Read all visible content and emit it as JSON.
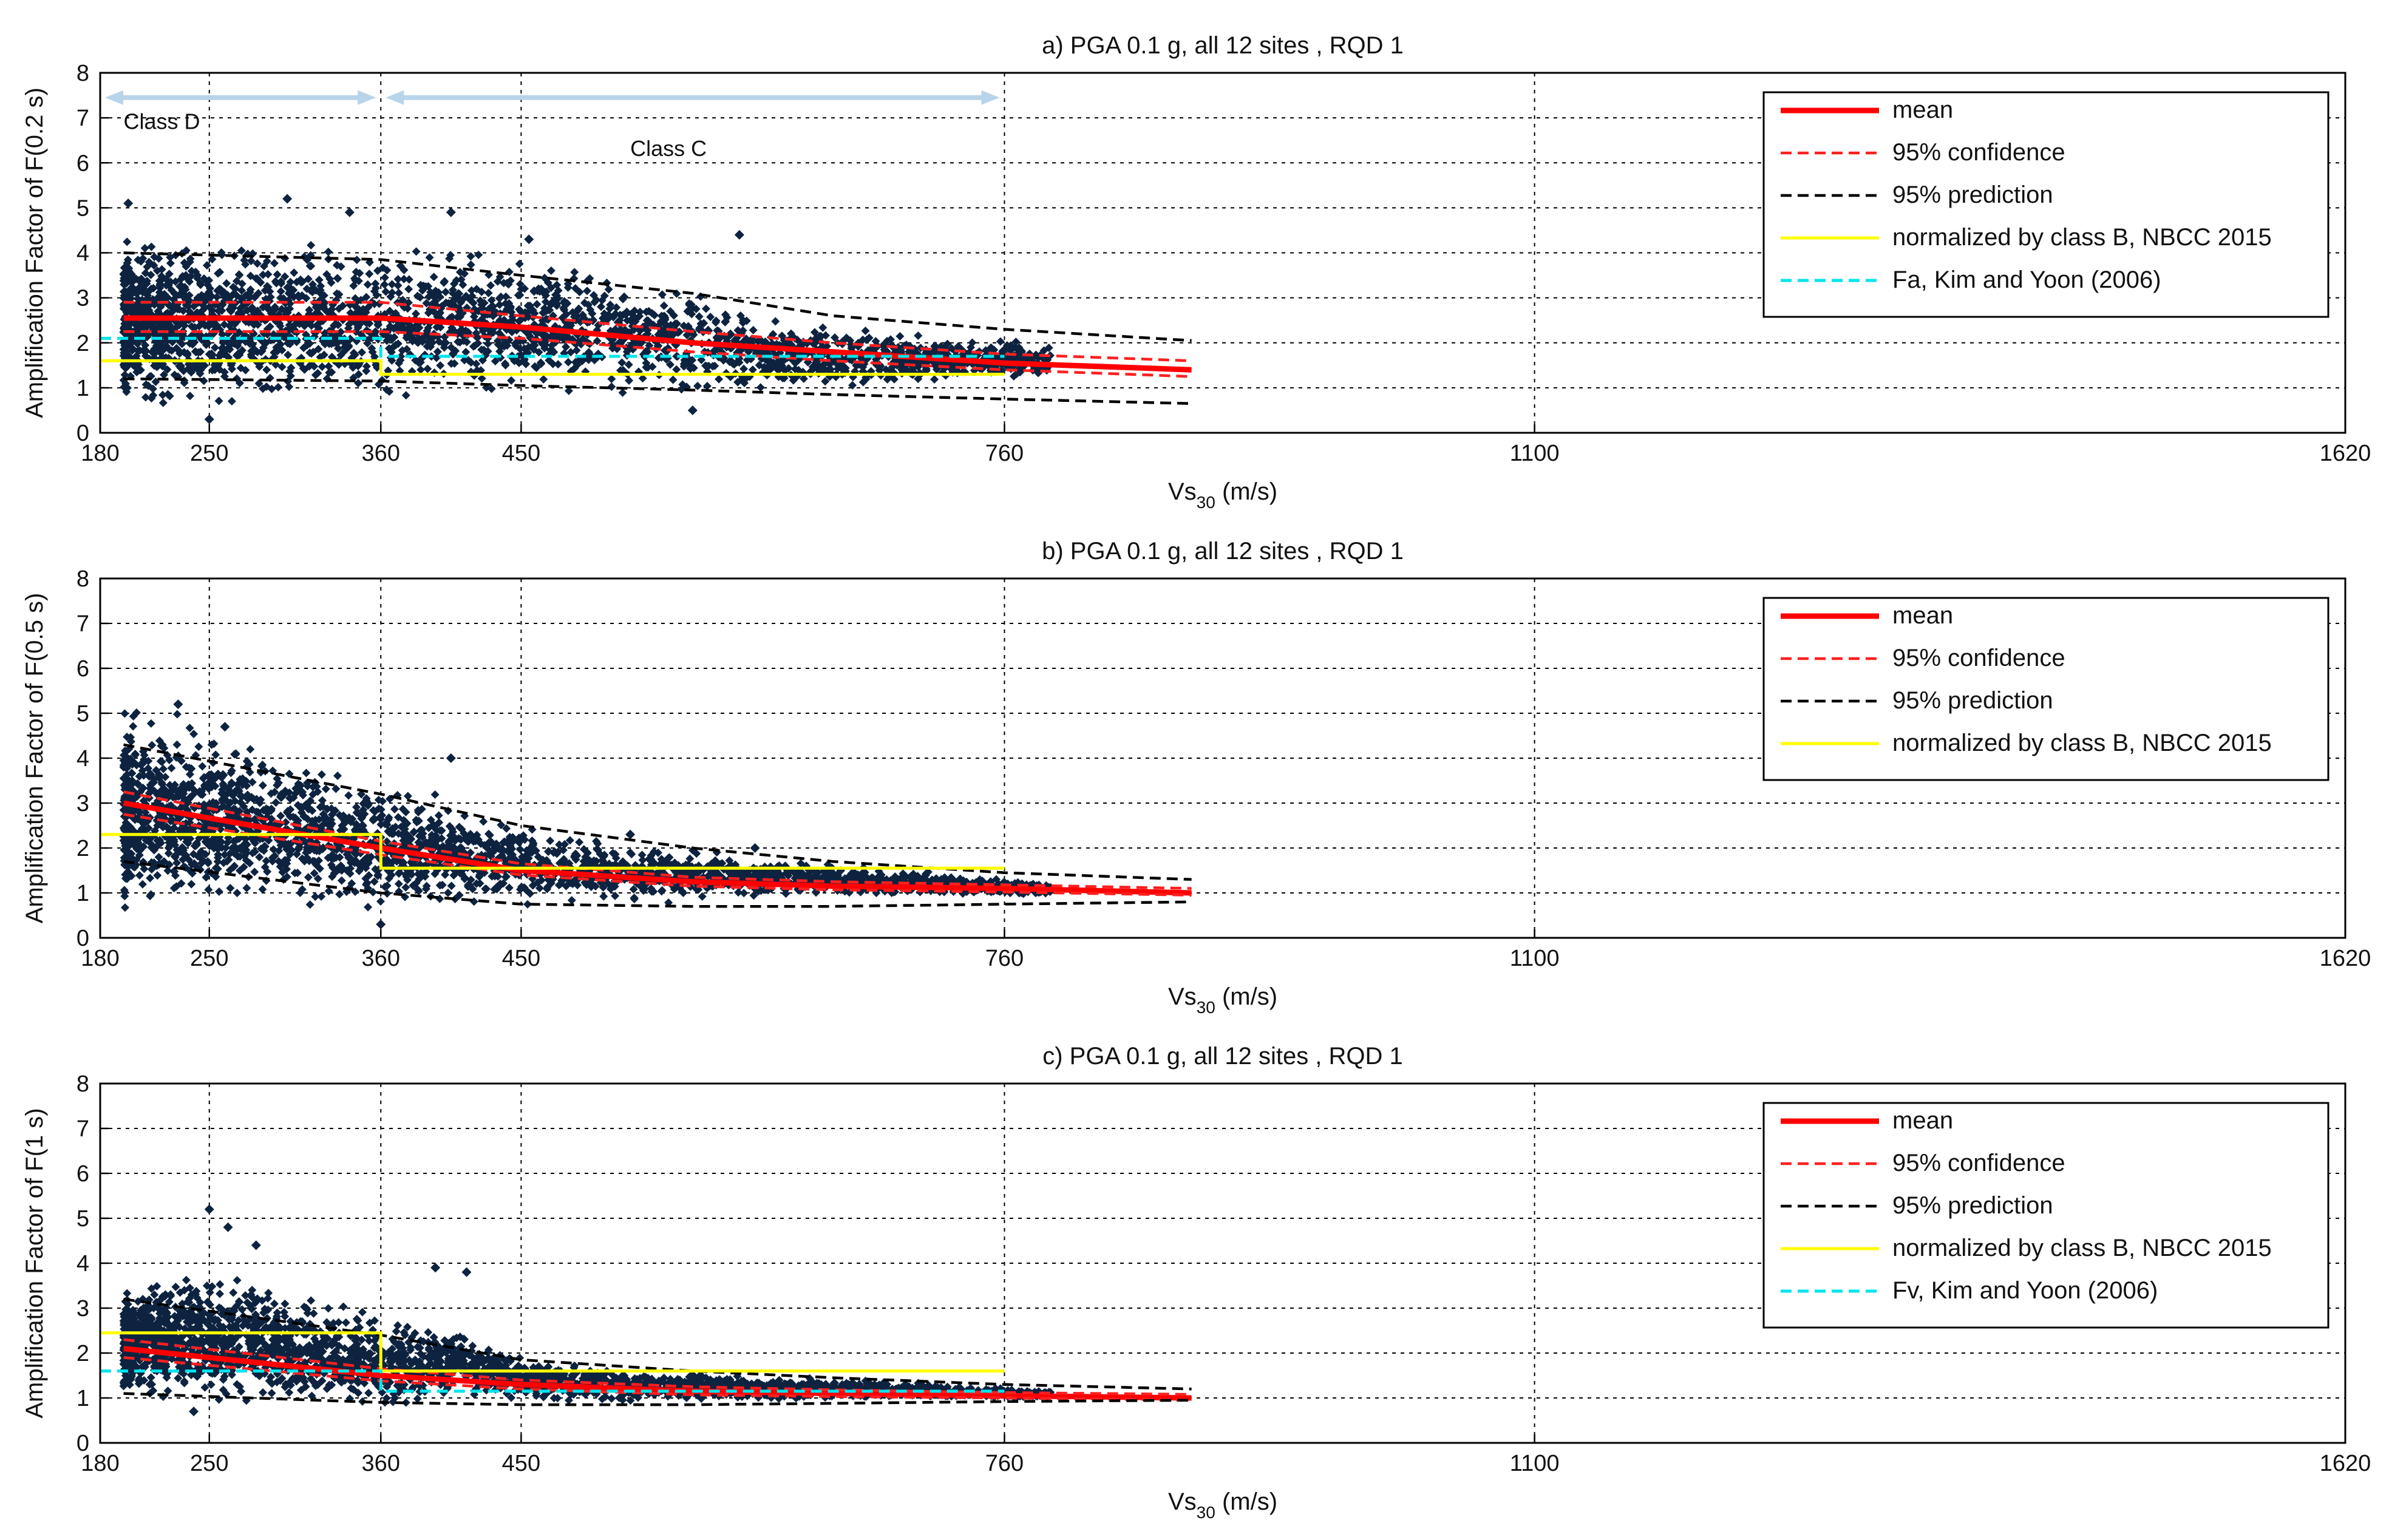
{
  "colors": {
    "mean": "#ff0000",
    "confidence": "#ff2020",
    "prediction": "#000000",
    "nbcc": "#ffff00",
    "kimyoon": "#00e5ee",
    "scatter": "#0d2340",
    "class_arrow": "#b8d4ea"
  },
  "chart_data": [
    {
      "type": "scatter",
      "title": "a) PGA 0.1 g, all 12 sites , RQD 1",
      "xlabel_main": "Vs",
      "xlabel_sub": "30",
      "xlabel_unit": "(m/s)",
      "ylabel": "Amplification Factor of F(0.2 s)",
      "xlim": [
        180,
        1620
      ],
      "ylim": [
        0,
        8
      ],
      "xticks": [
        180,
        250,
        360,
        450,
        760,
        1100,
        1620
      ],
      "yticks": [
        0,
        1,
        2,
        3,
        4,
        5,
        6,
        7,
        8
      ],
      "grid": true,
      "legend_position": "top-right",
      "legend": [
        "mean",
        "95% confidence",
        "95% prediction",
        "normalized by class B, NBCC 2015",
        "Fa, Kim and Yoon (2006)"
      ],
      "annotations": [
        "Class D",
        "Class C"
      ],
      "cloud_bands": [
        {
          "x": 195,
          "low": 0.5,
          "high": 4.4
        },
        {
          "x": 250,
          "low": 0.5,
          "high": 4.3
        },
        {
          "x": 300,
          "low": 0.7,
          "high": 4.2
        },
        {
          "x": 360,
          "low": 0.6,
          "high": 4.1
        },
        {
          "x": 400,
          "low": 0.9,
          "high": 4.0
        },
        {
          "x": 450,
          "low": 1.0,
          "high": 3.9
        },
        {
          "x": 500,
          "low": 0.9,
          "high": 3.6
        },
        {
          "x": 560,
          "low": 0.8,
          "high": 3.2
        },
        {
          "x": 620,
          "low": 1.0,
          "high": 2.5
        },
        {
          "x": 700,
          "low": 1.1,
          "high": 2.2
        },
        {
          "x": 790,
          "low": 1.2,
          "high": 2.0
        }
      ],
      "outliers": [
        [
          198,
          5.1
        ],
        [
          300,
          5.2
        ],
        [
          340,
          4.9
        ],
        [
          405,
          4.9
        ],
        [
          590,
          4.4
        ],
        [
          455,
          4.3
        ],
        [
          560,
          0.5
        ],
        [
          250,
          0.3
        ]
      ],
      "series": [
        {
          "name": "mean",
          "x": [
            195,
            360,
            450,
            560,
            650,
            760,
            880
          ],
          "y": [
            2.55,
            2.55,
            2.35,
            2.0,
            1.8,
            1.55,
            1.4
          ]
        },
        {
          "name": "95% confidence upper",
          "x": [
            195,
            360,
            450,
            560,
            650,
            760,
            880
          ],
          "y": [
            2.9,
            2.9,
            2.6,
            2.25,
            2.0,
            1.75,
            1.6
          ]
        },
        {
          "name": "95% confidence lower",
          "x": [
            195,
            360,
            450,
            560,
            650,
            760,
            880
          ],
          "y": [
            2.25,
            2.25,
            2.1,
            1.8,
            1.6,
            1.4,
            1.25
          ]
        },
        {
          "name": "95% prediction upper",
          "x": [
            195,
            360,
            450,
            560,
            650,
            760,
            880
          ],
          "y": [
            4.0,
            3.85,
            3.5,
            3.1,
            2.6,
            2.3,
            2.05
          ]
        },
        {
          "name": "95% prediction lower",
          "x": [
            195,
            360,
            450,
            560,
            650,
            760,
            880
          ],
          "y": [
            1.2,
            1.15,
            1.05,
            0.95,
            0.85,
            0.75,
            0.65
          ]
        },
        {
          "name": "normalized by class B, NBCC 2015",
          "x": [
            180,
            360,
            360,
            760
          ],
          "y": [
            1.6,
            1.6,
            1.3,
            1.3
          ]
        },
        {
          "name": "Fa, Kim and Yoon (2006)",
          "x": [
            180,
            360,
            360,
            760
          ],
          "y": [
            2.1,
            2.1,
            1.7,
            1.7
          ]
        }
      ]
    },
    {
      "type": "scatter",
      "title": "b) PGA 0.1 g, all 12 sites , RQD 1",
      "xlabel_main": "Vs",
      "xlabel_sub": "30",
      "xlabel_unit": "(m/s)",
      "ylabel": "Amplification Factor of F(0.5 s)",
      "xlim": [
        180,
        1620
      ],
      "ylim": [
        0,
        8
      ],
      "xticks": [
        180,
        250,
        360,
        450,
        760,
        1100,
        1620
      ],
      "yticks": [
        0,
        1,
        2,
        3,
        4,
        5,
        6,
        7,
        8
      ],
      "grid": true,
      "legend_position": "top-right",
      "legend": [
        "mean",
        "95% confidence",
        "95% prediction",
        "normalized by class B, NBCC 2015"
      ],
      "cloud_bands": [
        {
          "x": 195,
          "low": 0.6,
          "high": 5.0
        },
        {
          "x": 250,
          "low": 0.6,
          "high": 4.6
        },
        {
          "x": 300,
          "low": 0.9,
          "high": 4.1
        },
        {
          "x": 360,
          "low": 0.7,
          "high": 3.5
        },
        {
          "x": 400,
          "low": 0.8,
          "high": 3.0
        },
        {
          "x": 450,
          "low": 0.8,
          "high": 2.5
        },
        {
          "x": 520,
          "low": 0.8,
          "high": 2.1
        },
        {
          "x": 600,
          "low": 0.9,
          "high": 1.8
        },
        {
          "x": 700,
          "low": 0.95,
          "high": 1.5
        },
        {
          "x": 790,
          "low": 0.95,
          "high": 1.2
        }
      ],
      "outliers": [
        [
          230,
          5.2
        ],
        [
          260,
          4.7
        ],
        [
          405,
          4.0
        ],
        [
          360,
          0.3
        ],
        [
          600,
          2.0
        ],
        [
          520,
          2.3
        ]
      ],
      "series": [
        {
          "name": "mean",
          "x": [
            195,
            360,
            450,
            560,
            650,
            760,
            880
          ],
          "y": [
            3.0,
            2.0,
            1.5,
            1.25,
            1.15,
            1.1,
            1.0
          ]
        },
        {
          "name": "95% confidence upper",
          "x": [
            195,
            360,
            450,
            560,
            650,
            760,
            880
          ],
          "y": [
            3.25,
            2.15,
            1.65,
            1.35,
            1.25,
            1.18,
            1.1
          ]
        },
        {
          "name": "95% confidence lower",
          "x": [
            195,
            360,
            450,
            560,
            650,
            760,
            880
          ],
          "y": [
            2.75,
            1.85,
            1.4,
            1.15,
            1.07,
            1.02,
            0.95
          ]
        },
        {
          "name": "95% prediction upper",
          "x": [
            195,
            360,
            450,
            560,
            650,
            760,
            880
          ],
          "y": [
            4.3,
            3.2,
            2.5,
            2.0,
            1.7,
            1.45,
            1.3
          ]
        },
        {
          "name": "95% prediction lower",
          "x": [
            195,
            360,
            450,
            560,
            650,
            760,
            880
          ],
          "y": [
            1.7,
            1.0,
            0.75,
            0.7,
            0.7,
            0.75,
            0.8
          ]
        },
        {
          "name": "normalized by class B, NBCC 2015",
          "x": [
            180,
            360,
            360,
            760
          ],
          "y": [
            2.3,
            2.3,
            1.55,
            1.55
          ]
        }
      ]
    },
    {
      "type": "scatter",
      "title": "c) PGA 0.1 g, all 12 sites , RQD 1",
      "xlabel_main": "Vs",
      "xlabel_sub": "30",
      "xlabel_unit": "(m/s)",
      "ylabel": "Amplification Factor of F(1 s)",
      "xlim": [
        180,
        1620
      ],
      "ylim": [
        0,
        8
      ],
      "xticks": [
        180,
        250,
        360,
        450,
        760,
        1100,
        1620
      ],
      "yticks": [
        0,
        1,
        2,
        3,
        4,
        5,
        6,
        7,
        8
      ],
      "grid": true,
      "legend_position": "top-right",
      "legend": [
        "mean",
        "95% confidence",
        "95% prediction",
        "normalized by class B, NBCC 2015",
        "Fv, Kim and Yoon (2006)"
      ],
      "cloud_bands": [
        {
          "x": 195,
          "low": 1.0,
          "high": 3.4
        },
        {
          "x": 250,
          "low": 0.8,
          "high": 4.0
        },
        {
          "x": 300,
          "low": 0.9,
          "high": 3.3
        },
        {
          "x": 360,
          "low": 0.8,
          "high": 2.8
        },
        {
          "x": 410,
          "low": 0.9,
          "high": 2.6
        },
        {
          "x": 450,
          "low": 0.95,
          "high": 1.9
        },
        {
          "x": 520,
          "low": 0.95,
          "high": 1.6
        },
        {
          "x": 600,
          "low": 0.95,
          "high": 1.5
        },
        {
          "x": 700,
          "low": 1.0,
          "high": 1.35
        },
        {
          "x": 790,
          "low": 1.0,
          "high": 1.15
        }
      ],
      "outliers": [
        [
          250,
          5.2
        ],
        [
          262,
          4.8
        ],
        [
          280,
          4.4
        ],
        [
          395,
          3.9
        ],
        [
          415,
          3.8
        ],
        [
          240,
          0.7
        ]
      ],
      "series": [
        {
          "name": "mean",
          "x": [
            195,
            360,
            450,
            560,
            650,
            760,
            880
          ],
          "y": [
            2.1,
            1.5,
            1.3,
            1.15,
            1.1,
            1.05,
            1.0
          ]
        },
        {
          "name": "95% confidence upper",
          "x": [
            195,
            360,
            450,
            560,
            650,
            760,
            880
          ],
          "y": [
            2.3,
            1.65,
            1.4,
            1.25,
            1.18,
            1.12,
            1.08
          ]
        },
        {
          "name": "95% confidence lower",
          "x": [
            195,
            360,
            450,
            560,
            650,
            760,
            880
          ],
          "y": [
            1.9,
            1.38,
            1.2,
            1.07,
            1.03,
            1.0,
            0.95
          ]
        },
        {
          "name": "95% prediction upper",
          "x": [
            195,
            360,
            450,
            560,
            650,
            760,
            880
          ],
          "y": [
            3.2,
            2.4,
            1.85,
            1.6,
            1.45,
            1.3,
            1.2
          ]
        },
        {
          "name": "95% prediction lower",
          "x": [
            195,
            360,
            450,
            560,
            650,
            760,
            880
          ],
          "y": [
            1.1,
            0.9,
            0.85,
            0.85,
            0.88,
            0.92,
            0.95
          ]
        },
        {
          "name": "normalized by class B, NBCC 2015",
          "x": [
            180,
            360,
            360,
            760
          ],
          "y": [
            2.45,
            2.45,
            1.6,
            1.6
          ]
        },
        {
          "name": "Fv, Kim and Yoon (2006)",
          "x": [
            180,
            360,
            360,
            760
          ],
          "y": [
            1.6,
            1.6,
            1.15,
            1.15
          ]
        }
      ]
    }
  ]
}
